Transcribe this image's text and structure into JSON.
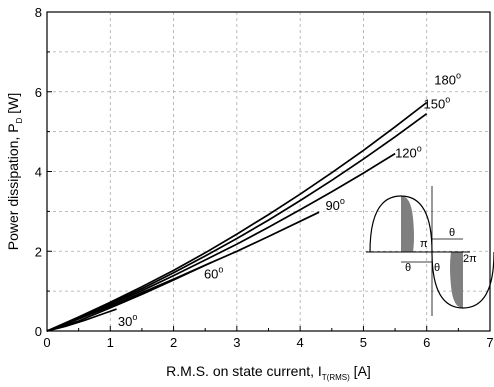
{
  "chart_data": {
    "type": "line",
    "title": "",
    "xlabel": {
      "main": "R.M.S. on state current, I",
      "sub": "T(RMS)",
      "unit": " [A]"
    },
    "ylabel": {
      "main": "Power dissipation, P",
      "sub": "D",
      "unit": " [W]"
    },
    "xlim": [
      0,
      7
    ],
    "ylim": [
      0,
      8
    ],
    "xticks": [
      "0",
      "1",
      "2",
      "3",
      "4",
      "5",
      "6",
      "7"
    ],
    "yticks": [
      "0",
      "2",
      "4",
      "6",
      "8"
    ],
    "grid": "dashed",
    "series": [
      {
        "name": "30",
        "x": [
          0,
          0.3,
          0.6,
          0.9,
          1.1
        ],
        "y": [
          0,
          0.12,
          0.27,
          0.44,
          0.55
        ]
      },
      {
        "name": "60",
        "x": [
          0,
          0.5,
          1.0,
          1.5,
          2.0,
          2.6
        ],
        "y": [
          0,
          0.25,
          0.58,
          0.92,
          1.28,
          1.72
        ]
      },
      {
        "name": "90",
        "x": [
          0,
          0.5,
          1.0,
          1.5,
          2.0,
          2.5,
          3.0,
          3.5,
          4.0,
          4.3
        ],
        "y": [
          0,
          0.3,
          0.62,
          0.96,
          1.3,
          1.65,
          2.0,
          2.37,
          2.75,
          2.98
        ]
      },
      {
        "name": "120",
        "x": [
          0,
          0.5,
          1.0,
          1.5,
          2.0,
          2.5,
          3.0,
          3.5,
          4.0,
          4.5,
          5.0,
          5.5,
          5.5
        ],
        "y": [
          0,
          0.32,
          0.66,
          1.01,
          1.39,
          1.78,
          2.18,
          2.6,
          3.04,
          3.49,
          3.96,
          4.45,
          4.45
        ]
      },
      {
        "name": "150",
        "x": [
          0,
          0.5,
          1.0,
          1.5,
          2.0,
          2.5,
          3.0,
          3.5,
          4.0,
          4.5,
          5.0,
          5.5,
          6.0
        ],
        "y": [
          0,
          0.33,
          0.69,
          1.06,
          1.46,
          1.88,
          2.32,
          2.78,
          3.27,
          3.78,
          4.31,
          4.87,
          5.45
        ]
      },
      {
        "name": "180",
        "x": [
          0,
          0.5,
          1.0,
          1.5,
          2.0,
          2.5,
          3.0,
          3.5,
          4.0,
          4.5,
          5.0,
          5.5,
          6.0
        ],
        "y": [
          0,
          0.35,
          0.72,
          1.11,
          1.52,
          1.96,
          2.43,
          2.92,
          3.43,
          3.97,
          4.53,
          5.12,
          5.73
        ]
      }
    ],
    "curve_labels": [
      "30",
      "60",
      "90",
      "120",
      "150",
      "180"
    ],
    "degree_symbol": "o",
    "inset": {
      "labels": [
        "π",
        "2π",
        "θ",
        "θ",
        "θ"
      ]
    }
  }
}
